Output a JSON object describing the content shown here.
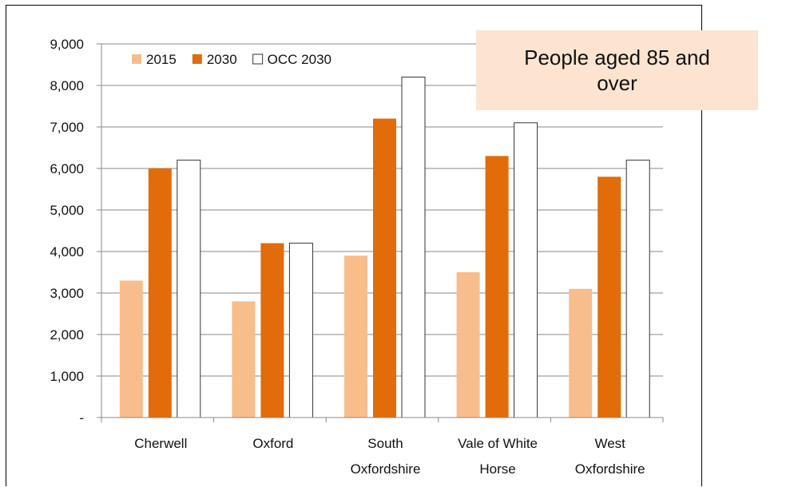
{
  "chart_data": {
    "type": "bar",
    "title": "People aged 85 and over",
    "categories": [
      [
        "Cherwell"
      ],
      [
        "Oxford"
      ],
      [
        "South",
        "Oxfordshire"
      ],
      [
        "Vale of White",
        "Horse"
      ],
      [
        "West",
        "Oxfordshire"
      ]
    ],
    "series": [
      {
        "name": "2015",
        "color": "#f8bd8c",
        "values": [
          3300,
          2800,
          3900,
          3500,
          3100
        ]
      },
      {
        "name": "2030",
        "color": "#e26b0a",
        "values": [
          6000,
          4200,
          7200,
          6300,
          5800
        ]
      },
      {
        "name": "OCC 2030",
        "color": "#ffffff",
        "values": [
          6200,
          4200,
          8200,
          7100,
          6200
        ]
      }
    ],
    "ylim": [
      0,
      9000
    ],
    "yticks": [
      0,
      1000,
      2000,
      3000,
      4000,
      5000,
      6000,
      7000,
      8000,
      9000
    ],
    "ytick_labels": [
      "-",
      "1,000",
      "2,000",
      "3,000",
      "4,000",
      "5,000",
      "6,000",
      "7,000",
      "8,000",
      "9,000"
    ],
    "grid": true,
    "legend": "top-left"
  }
}
